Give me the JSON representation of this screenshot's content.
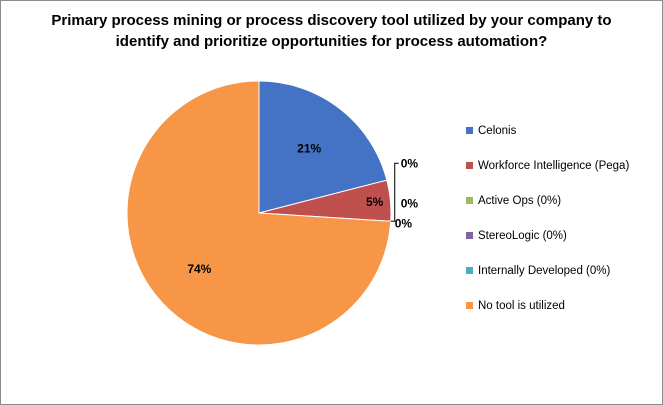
{
  "chart_data": {
    "type": "pie",
    "title_lines": [
      "Primary process mining or process discovery tool utilized by your company to",
      "identify and prioritize opportunities for process automation?"
    ],
    "slices": [
      {
        "label": "Celonis",
        "value": 21,
        "display": "21%",
        "color": "#4472C4"
      },
      {
        "label": "Workforce Intelligence (Pega)",
        "value": 5,
        "display": "5%",
        "color": "#C0504D"
      },
      {
        "label": "Active Ops (0%)",
        "value": 0,
        "display": "0%",
        "color": "#9BBB59"
      },
      {
        "label": "StereoLogic (0%)",
        "value": 0,
        "display": "0%",
        "color": "#8064A2"
      },
      {
        "label": "Internally Developed (0%)",
        "value": 0,
        "display": "0%",
        "color": "#4BACC6"
      },
      {
        "label": "No tool is utilized",
        "value": 74,
        "display": "74%",
        "color": "#F79646"
      }
    ],
    "legend_position": "right",
    "start_angle": "12 o'clock, clockwise"
  }
}
